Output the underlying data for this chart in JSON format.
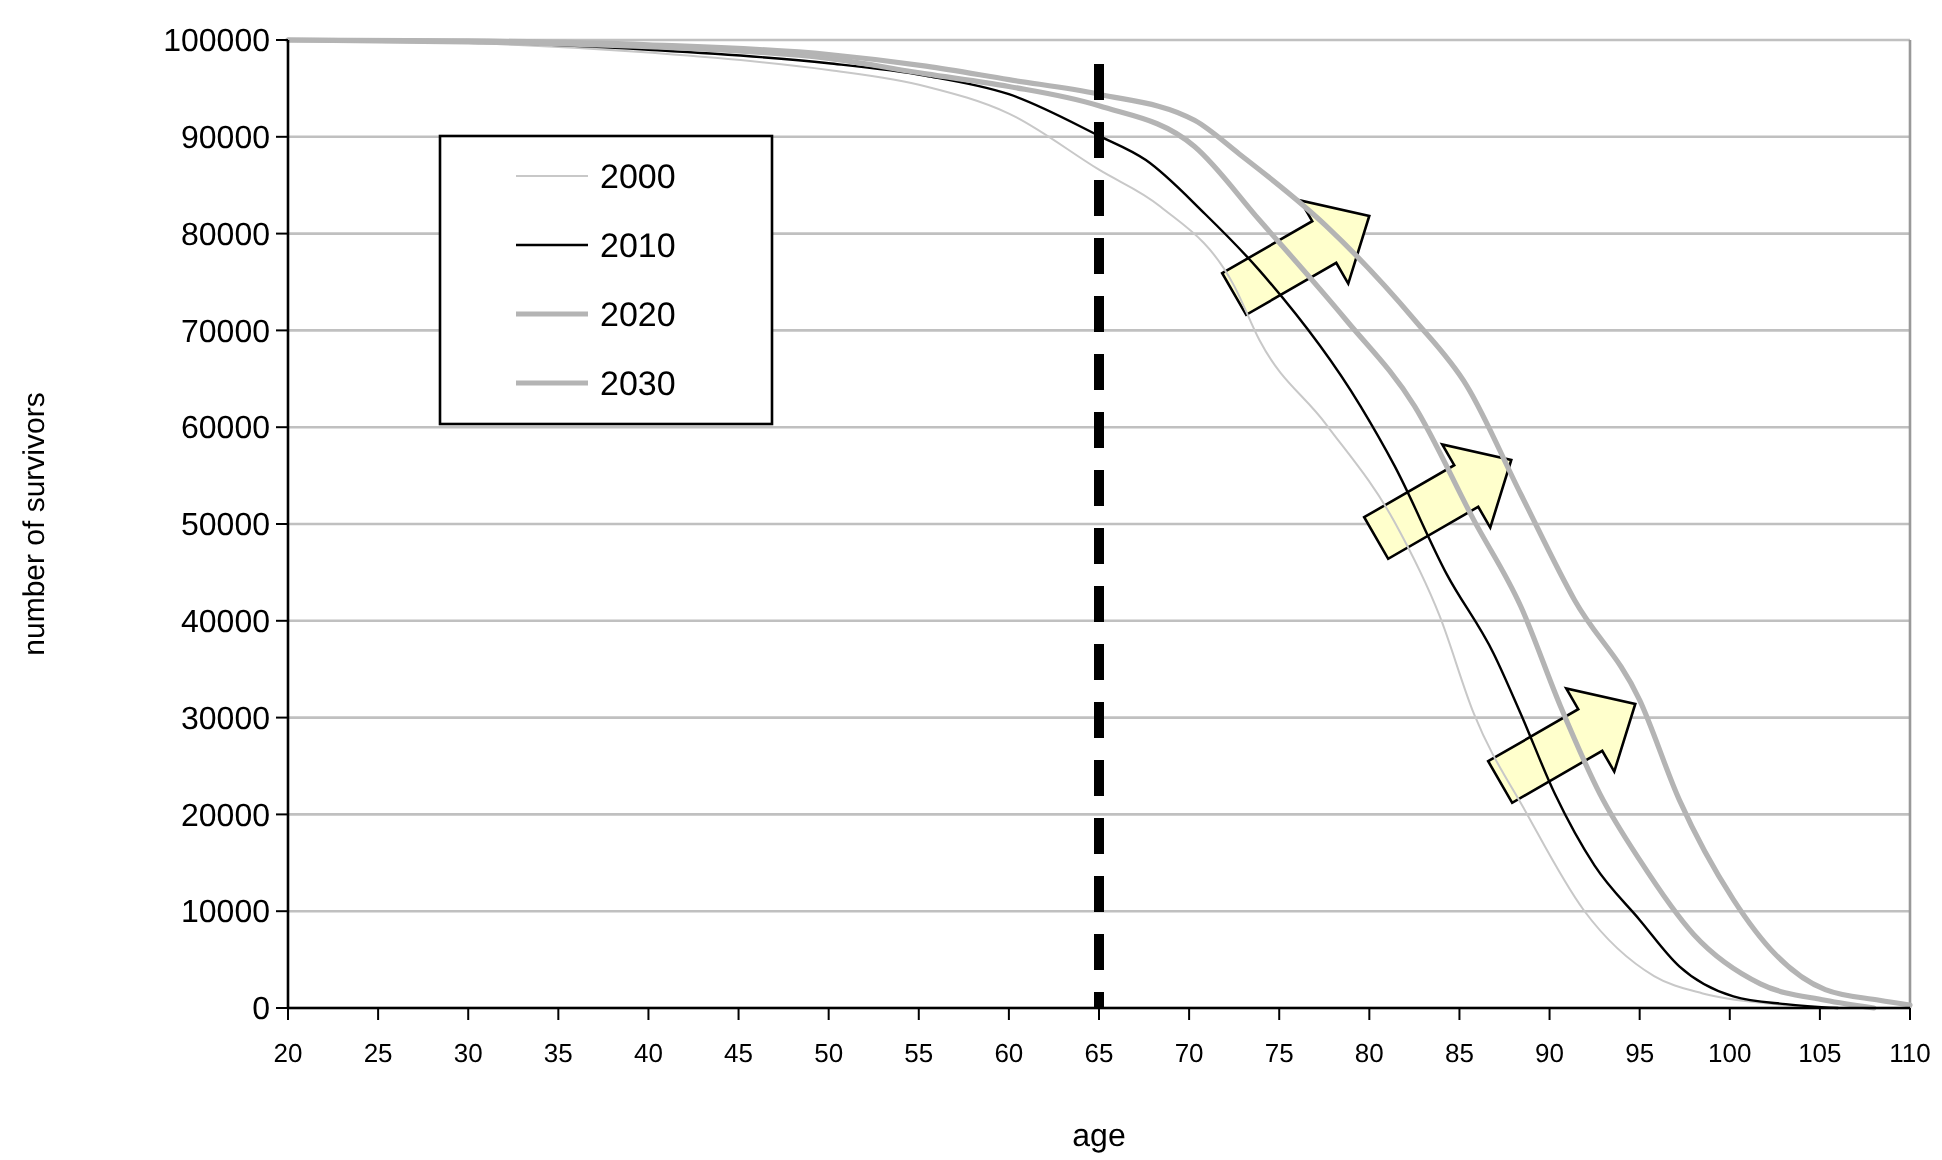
{
  "chart_data": {
    "type": "line",
    "xlabel": "age",
    "ylabel": "number of survivors",
    "xlim": [
      20,
      110
    ],
    "xticks": [
      20,
      25,
      30,
      35,
      40,
      45,
      50,
      55,
      60,
      65,
      70,
      75,
      80,
      85,
      90,
      95,
      100,
      105,
      110
    ],
    "ylim": [
      0,
      100000
    ],
    "yticks": [
      0,
      10000,
      20000,
      30000,
      40000,
      50000,
      60000,
      70000,
      80000,
      90000,
      100000
    ],
    "grid": "y",
    "legend": "top left",
    "marker": "none",
    "line_style": "solid",
    "ref_lines": [
      {
        "axis": "x",
        "value": 65,
        "color": "#000000",
        "line_style": "dashed"
      }
    ],
    "series": [
      {
        "name": "2000",
        "color": "#c8c8c8",
        "x": [
          20,
          30,
          40,
          50,
          55.4,
          60,
          65,
          68.4,
          72.5,
          73.9,
          77.6,
          81.4,
          83.9,
          85.8,
          88.7,
          91.9,
          95.8,
          98.5,
          102.5,
          105
        ],
        "values": [
          100000,
          99700,
          98700,
          96900,
          95200,
          92400,
          86600,
          82800,
          74600,
          69000,
          60300,
          50200,
          40500,
          30400,
          20200,
          10100,
          3300,
          1500,
          400,
          0
        ]
      },
      {
        "name": "2010",
        "color": "#000000",
        "x": [
          20,
          30,
          40,
          50,
          55.4,
          60,
          65,
          67.6,
          70.9,
          73.9,
          79.5,
          81.4,
          84.3,
          86.9,
          88.4,
          90.3,
          92.5,
          95,
          97.2,
          100.2,
          103.1,
          106
        ],
        "values": [
          100000,
          99800,
          99000,
          97600,
          96300,
          94400,
          90100,
          87600,
          82000,
          76200,
          62200,
          56000,
          44800,
          36600,
          30400,
          22100,
          14700,
          9100,
          4300,
          1200,
          400,
          0
        ]
      },
      {
        "name": "2020",
        "color": "#b4b4b4",
        "x": [
          20,
          30,
          40,
          50,
          55.4,
          60,
          65,
          70.3,
          73.9,
          78.7,
          82.5,
          85.8,
          88.4,
          90.6,
          92.8,
          95,
          98,
          101.7,
          105.3,
          108
        ],
        "values": [
          100000,
          99800,
          99300,
          98100,
          96500,
          95200,
          93200,
          89000,
          81400,
          71100,
          62200,
          50400,
          41500,
          31200,
          22100,
          15300,
          7600,
          2500,
          800,
          0
        ]
      },
      {
        "name": "2030",
        "color": "#b4b4b4",
        "x": [
          20,
          30,
          40,
          50,
          55.4,
          60,
          65,
          70.3,
          72.8,
          77.6,
          82.5,
          85.4,
          88.4,
          91.4,
          95,
          97.2,
          100.2,
          102.5,
          105.3,
          108.3,
          110
        ],
        "values": [
          100000,
          99900,
          99500,
          98500,
          97300,
          95900,
          94400,
          91700,
          88200,
          80800,
          71100,
          64300,
          53100,
          42100,
          31800,
          21500,
          11200,
          5600,
          1900,
          800,
          300
        ]
      }
    ]
  }
}
